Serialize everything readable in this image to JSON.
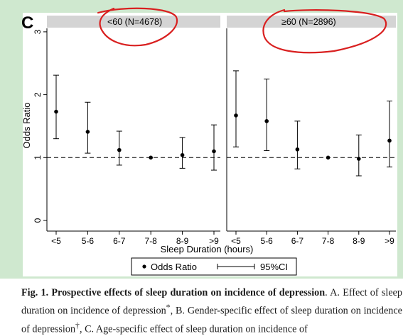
{
  "colors": {
    "background": "#cfe8cf",
    "plot_bg": "#ffffff",
    "panel_strip": "#d4d4d4",
    "annotation": "#d92020"
  },
  "chart_data": {
    "type": "scatter",
    "panel_letter": "C",
    "xlabel": "Sleep Duration (hours)",
    "ylabel": "Odds Ratio",
    "ylim": [
      0,
      3.1
    ],
    "yticks": [
      0,
      1,
      2,
      3
    ],
    "reference_line": 1,
    "categories": [
      "<5",
      "5-6",
      "6-7",
      "7-8",
      "8-9",
      ">9"
    ],
    "legend": {
      "placement": "bottom",
      "point_label": "Odds Ratio",
      "ci_label": "95%CI"
    },
    "panels": [
      {
        "title": "<60 (N=4678)",
        "points": [
          {
            "x": "<5",
            "or": 1.73,
            "lo": 1.3,
            "hi": 2.31
          },
          {
            "x": "5-6",
            "or": 1.41,
            "lo": 1.07,
            "hi": 1.88
          },
          {
            "x": "6-7",
            "or": 1.12,
            "lo": 0.88,
            "hi": 1.42
          },
          {
            "x": "7-8",
            "or": 1.0,
            "lo": 1.0,
            "hi": 1.0
          },
          {
            "x": "8-9",
            "or": 1.04,
            "lo": 0.83,
            "hi": 1.32
          },
          {
            "x": ">9",
            "or": 1.1,
            "lo": 0.8,
            "hi": 1.52
          }
        ]
      },
      {
        "title": "≥60 (N=2896)",
        "points": [
          {
            "x": "<5",
            "or": 1.67,
            "lo": 1.17,
            "hi": 2.38
          },
          {
            "x": "5-6",
            "or": 1.58,
            "lo": 1.11,
            "hi": 2.25
          },
          {
            "x": "6-7",
            "or": 1.13,
            "lo": 0.82,
            "hi": 1.58
          },
          {
            "x": "7-8",
            "or": 1.0,
            "lo": 1.0,
            "hi": 1.0
          },
          {
            "x": "8-9",
            "or": 0.98,
            "lo": 0.71,
            "hi": 1.36
          },
          {
            "x": ">9",
            "or": 1.27,
            "lo": 0.85,
            "hi": 1.9
          }
        ]
      }
    ]
  },
  "caption": {
    "label": "Fig. 1.",
    "title": "Prospective effects of sleep duration on incidence of depression",
    "text_a": ". A. Effect of sleep duration on incidence of depression",
    "sup1": "*",
    "text_b": ", B. Gender-specific effect of sleep duration on incidence of depression",
    "sup2": "†",
    "text_c": ", C. Age-specific effect of sleep duration on incidence of"
  }
}
